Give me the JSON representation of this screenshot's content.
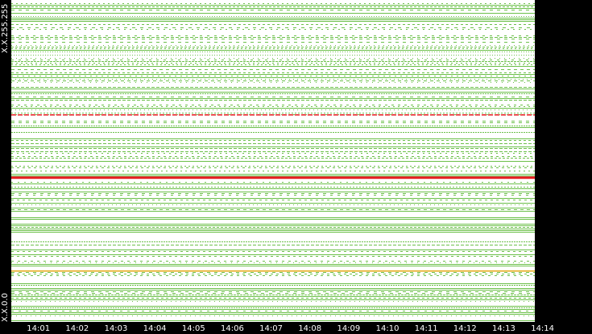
{
  "chart_data": {
    "type": "heatmap",
    "title": "",
    "xlabel": "",
    "ylabel": "",
    "y_range_labels": {
      "top": "X.X.255.255",
      "bottom": "X.X.0.0"
    },
    "x_ticks": [
      "14:01",
      "14:02",
      "14:03",
      "14:04",
      "14:05",
      "14:06",
      "14:07",
      "14:08",
      "14:09",
      "14:10",
      "14:11",
      "14:12",
      "14:13",
      "14:14"
    ],
    "x_range_minutes": [
      0,
      13.5
    ],
    "colors": {
      "background": "#ffffff",
      "normal": "#6cc04a",
      "high": "#e31a1c",
      "medium": "#e6a817",
      "axis": "#000000"
    },
    "highlight_rows": [
      {
        "y_fraction": 0.357,
        "level": "high"
      },
      {
        "y_fraction": 0.552,
        "level": "high"
      },
      {
        "y_fraction": 0.842,
        "level": "medium"
      }
    ]
  }
}
